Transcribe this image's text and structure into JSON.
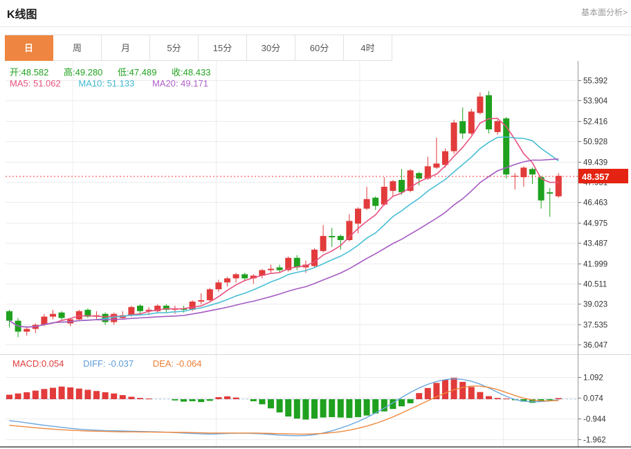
{
  "header": {
    "title": "K线图",
    "analysis_link": "基本面分析>"
  },
  "toolbar": {
    "tabs": [
      {
        "label": "日",
        "selected": true
      },
      {
        "label": "周",
        "selected": false
      },
      {
        "label": "月",
        "selected": false
      },
      {
        "label": "5分",
        "selected": false
      },
      {
        "label": "15分",
        "selected": false
      },
      {
        "label": "30分",
        "selected": false
      },
      {
        "label": "60分",
        "selected": false
      },
      {
        "label": "4时",
        "selected": false
      }
    ]
  },
  "quote_bar": {
    "open_label": "开:",
    "open": "48.582",
    "high_label": "高:",
    "high": "49.280",
    "low_label": "低:",
    "low": "47.489",
    "close_label": "收:",
    "close": "48.433"
  },
  "ma_bar": {
    "ma5_label": "MA5:",
    "ma5": "51.062",
    "ma10_label": "MA10:",
    "ma10": "51.133",
    "ma20_label": "MA20:",
    "ma20": "49.171"
  },
  "macd_bar": {
    "macd_label": "MACD:",
    "macd": "0.054",
    "diff_label": "DIFF:",
    "diff": "-0.037",
    "dea_label": "DEA:",
    "dea": "-0.064"
  },
  "colors": {
    "up": "#e23b3b",
    "down": "#1fa11f",
    "ma5": "#e8517e",
    "ma10": "#49bfd6",
    "ma20": "#a55bc2",
    "diff_line": "#6aa7e0",
    "dea_line": "#f0883c",
    "selected_tab": "#ee8540",
    "price_flag": "#e42312",
    "current_price_line": "#ff3333",
    "grid": "#ececec",
    "axis": "#999999"
  },
  "chart_data": [
    {
      "type": "candlestick",
      "title": "K线图",
      "period": "日",
      "legend": [
        "MA5",
        "MA10",
        "MA20"
      ],
      "grid": true,
      "y_ticks": [
        "55.392",
        "53.904",
        "52.416",
        "50.928",
        "49.439",
        "47.951",
        "46.463",
        "44.975",
        "43.487",
        "41.999",
        "40.511",
        "39.023",
        "37.535",
        "36.047"
      ],
      "ylim": [
        35.5,
        56.8
      ],
      "current_price": "48.357",
      "ohlc_display": {
        "open": 48.582,
        "high": 49.28,
        "low": 47.489,
        "close": 48.433
      },
      "ma_display": {
        "MA5": 51.062,
        "MA10": 51.133,
        "MA20": 49.171
      },
      "ma_windows": [
        5,
        10,
        20
      ],
      "candles_ohlc": [
        [
          38.5,
          38.6,
          37.3,
          37.8
        ],
        [
          37.8,
          38.0,
          36.6,
          37.0
        ],
        [
          37.0,
          37.4,
          36.7,
          37.2
        ],
        [
          37.2,
          37.6,
          36.9,
          37.5
        ],
        [
          37.5,
          38.3,
          37.4,
          38.1
        ],
        [
          38.1,
          38.6,
          37.9,
          38.3
        ],
        [
          38.4,
          38.5,
          37.8,
          38.0
        ],
        [
          37.6,
          38.0,
          37.4,
          37.9
        ],
        [
          37.9,
          38.6,
          37.8,
          38.5
        ],
        [
          38.6,
          38.7,
          38.0,
          38.1
        ],
        [
          38.1,
          38.5,
          37.9,
          38.2
        ],
        [
          38.3,
          38.4,
          37.5,
          37.7
        ],
        [
          37.7,
          38.4,
          37.5,
          38.3
        ],
        [
          38.0,
          38.5,
          37.9,
          38.2
        ],
        [
          38.2,
          38.9,
          38.1,
          38.8
        ],
        [
          38.9,
          39.0,
          38.3,
          38.5
        ],
        [
          38.5,
          38.8,
          38.2,
          38.6
        ],
        [
          38.5,
          39.0,
          38.4,
          38.9
        ],
        [
          38.9,
          39.0,
          38.4,
          38.6
        ],
        [
          38.6,
          38.9,
          38.3,
          38.7
        ],
        [
          38.7,
          38.9,
          38.4,
          38.6
        ],
        [
          38.6,
          39.3,
          38.5,
          39.2
        ],
        [
          39.2,
          39.8,
          39.0,
          39.3
        ],
        [
          39.3,
          40.2,
          39.2,
          40.1
        ],
        [
          40.1,
          40.8,
          39.9,
          40.6
        ],
        [
          40.6,
          41.0,
          40.3,
          40.9
        ],
        [
          40.9,
          41.3,
          40.6,
          41.2
        ],
        [
          41.2,
          41.3,
          40.7,
          40.9
        ],
        [
          40.9,
          41.2,
          40.5,
          41.1
        ],
        [
          41.1,
          41.6,
          40.9,
          41.5
        ],
        [
          41.5,
          41.9,
          41.3,
          41.6
        ],
        [
          41.7,
          41.9,
          41.3,
          41.5
        ],
        [
          41.5,
          42.5,
          41.4,
          42.4
        ],
        [
          42.4,
          42.6,
          41.5,
          41.7
        ],
        [
          41.7,
          42.2,
          41.3,
          41.9
        ],
        [
          41.8,
          43.1,
          41.7,
          43.0
        ],
        [
          42.9,
          44.8,
          42.8,
          44.0
        ],
        [
          44.0,
          44.6,
          43.2,
          43.9
        ],
        [
          44.0,
          44.1,
          43.0,
          43.7
        ],
        [
          43.7,
          45.6,
          43.6,
          45.1
        ],
        [
          44.9,
          46.1,
          44.2,
          46.0
        ],
        [
          46.0,
          47.6,
          45.9,
          46.7
        ],
        [
          46.8,
          46.9,
          45.9,
          46.2
        ],
        [
          46.3,
          48.3,
          46.2,
          47.6
        ],
        [
          47.3,
          48.1,
          46.9,
          48.0
        ],
        [
          48.1,
          48.9,
          47.0,
          47.2
        ],
        [
          47.3,
          48.9,
          47.2,
          48.8
        ],
        [
          48.6,
          48.7,
          47.7,
          48.2
        ],
        [
          48.2,
          49.8,
          48.1,
          49.1
        ],
        [
          49.0,
          51.2,
          48.9,
          49.3
        ],
        [
          49.2,
          50.4,
          49.0,
          50.2
        ],
        [
          50.2,
          52.5,
          50.0,
          52.3
        ],
        [
          52.4,
          53.4,
          51.1,
          51.5
        ],
        [
          51.5,
          53.3,
          51.4,
          53.1
        ],
        [
          53.0,
          54.5,
          52.9,
          54.2
        ],
        [
          54.3,
          54.6,
          51.5,
          51.8
        ],
        [
          51.6,
          52.5,
          51.4,
          52.4
        ],
        [
          52.6,
          52.7,
          48.2,
          48.5
        ],
        [
          48.4,
          48.6,
          47.4,
          48.4
        ],
        [
          48.3,
          49.1,
          47.6,
          49.0
        ],
        [
          48.9,
          49.0,
          47.8,
          48.5
        ],
        [
          48.3,
          48.4,
          46.0,
          46.6
        ],
        [
          47.2,
          47.5,
          45.4,
          47.1
        ],
        [
          46.9,
          48.6,
          46.8,
          48.4
        ]
      ]
    },
    {
      "type": "bar",
      "title": "MACD",
      "y_ticks": [
        "1.092",
        "0.074",
        "-0.944",
        "-1.962"
      ],
      "ylim": [
        -2.3,
        1.6
      ],
      "display": {
        "MACD": 0.054,
        "DIFF": -0.037,
        "DEA": -0.064
      },
      "bar_values": [
        0.22,
        0.28,
        0.34,
        0.42,
        0.5,
        0.56,
        0.62,
        0.58,
        0.52,
        0.46,
        0.4,
        0.34,
        0.28,
        0.2,
        0.12,
        0.06,
        0.03,
        0.0,
        0.0,
        -0.06,
        -0.12,
        -0.1,
        -0.14,
        -0.08,
        0.1,
        0.14,
        0.08,
        0.0,
        -0.1,
        -0.25,
        -0.45,
        -0.65,
        -0.85,
        -0.95,
        -1.0,
        -0.95,
        -0.9,
        -0.88,
        -0.9,
        -0.92,
        -0.88,
        -0.8,
        -0.7,
        -0.6,
        -0.48,
        -0.35,
        -0.2,
        0.3,
        0.55,
        0.8,
        0.95,
        1.05,
        0.85,
        0.6,
        0.35,
        0.15,
        0.06,
        0.03,
        -0.05,
        -0.12,
        -0.18,
        -0.1,
        -0.05,
        0.054
      ],
      "diff_line": [
        -1.05,
        -1.1,
        -1.16,
        -1.22,
        -1.28,
        -1.33,
        -1.38,
        -1.43,
        -1.47,
        -1.5,
        -1.52,
        -1.54,
        -1.55,
        -1.56,
        -1.57,
        -1.58,
        -1.59,
        -1.6,
        -1.62,
        -1.64,
        -1.66,
        -1.68,
        -1.7,
        -1.71,
        -1.7,
        -1.68,
        -1.67,
        -1.67,
        -1.68,
        -1.7,
        -1.73,
        -1.76,
        -1.78,
        -1.79,
        -1.78,
        -1.74,
        -1.66,
        -1.55,
        -1.42,
        -1.27,
        -1.1,
        -0.9,
        -0.68,
        -0.44,
        -0.18,
        0.08,
        0.33,
        0.55,
        0.73,
        0.87,
        0.96,
        1.0,
        0.97,
        0.88,
        0.74,
        0.55,
        0.34,
        0.14,
        -0.02,
        -0.1,
        -0.13,
        -0.12,
        -0.08,
        -0.037
      ],
      "dea_line": [
        -1.28,
        -1.32,
        -1.36,
        -1.4,
        -1.44,
        -1.47,
        -1.5,
        -1.52,
        -1.54,
        -1.56,
        -1.57,
        -1.58,
        -1.59,
        -1.6,
        -1.6,
        -1.61,
        -1.61,
        -1.62,
        -1.62,
        -1.63,
        -1.63,
        -1.64,
        -1.65,
        -1.66,
        -1.66,
        -1.66,
        -1.66,
        -1.66,
        -1.66,
        -1.67,
        -1.68,
        -1.69,
        -1.7,
        -1.71,
        -1.71,
        -1.7,
        -1.68,
        -1.64,
        -1.59,
        -1.52,
        -1.43,
        -1.32,
        -1.19,
        -1.04,
        -0.87,
        -0.68,
        -0.48,
        -0.28,
        -0.08,
        0.12,
        0.3,
        0.46,
        0.58,
        0.64,
        0.64,
        0.58,
        0.47,
        0.33,
        0.18,
        0.05,
        -0.04,
        -0.08,
        -0.08,
        -0.064
      ]
    }
  ]
}
